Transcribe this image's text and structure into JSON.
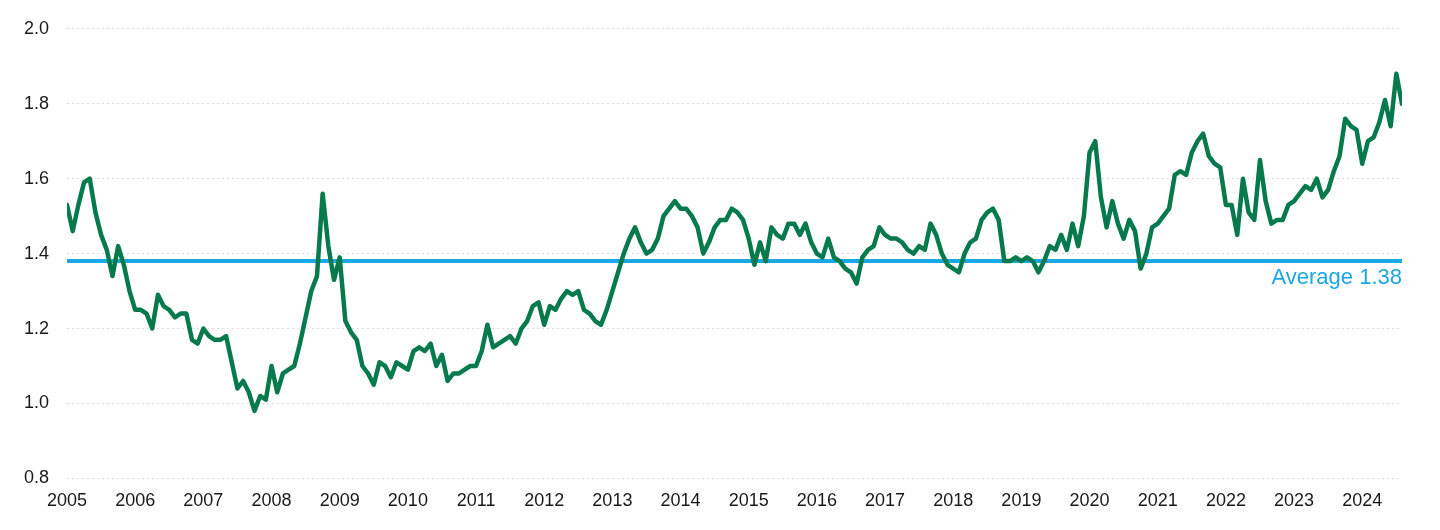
{
  "chart_data": {
    "type": "line",
    "color": "#077a4d",
    "categories": [
      "2005",
      null,
      null,
      null,
      null,
      null,
      null,
      null,
      null,
      null,
      null,
      null,
      "2006",
      null,
      null,
      null,
      null,
      null,
      null,
      null,
      null,
      null,
      null,
      null,
      "2007",
      null,
      null,
      null,
      null,
      null,
      null,
      null,
      null,
      null,
      null,
      null,
      "2008",
      null,
      null,
      null,
      null,
      null,
      null,
      null,
      null,
      null,
      null,
      null,
      "2009",
      null,
      null,
      null,
      null,
      null,
      null,
      null,
      null,
      null,
      null,
      null,
      "2010",
      null,
      null,
      null,
      null,
      null,
      null,
      null,
      null,
      null,
      null,
      null,
      "2011",
      null,
      null,
      null,
      null,
      null,
      null,
      null,
      null,
      null,
      null,
      null,
      "2012",
      null,
      null,
      null,
      null,
      null,
      null,
      null,
      null,
      null,
      null,
      null,
      "2013",
      null,
      null,
      null,
      null,
      null,
      null,
      null,
      null,
      null,
      null,
      null,
      "2014",
      null,
      null,
      null,
      null,
      null,
      null,
      null,
      null,
      null,
      null,
      null,
      "2015",
      null,
      null,
      null,
      null,
      null,
      null,
      null,
      null,
      null,
      null,
      null,
      "2016",
      null,
      null,
      null,
      null,
      null,
      null,
      null,
      null,
      null,
      null,
      null,
      "2017",
      null,
      null,
      null,
      null,
      null,
      null,
      null,
      null,
      null,
      null,
      null,
      "2018",
      null,
      null,
      null,
      null,
      null,
      null,
      null,
      null,
      null,
      null,
      null,
      "2019",
      null,
      null,
      null,
      null,
      null,
      null,
      null,
      null,
      null,
      null,
      null,
      "2020",
      null,
      null,
      null,
      null,
      null,
      null,
      null,
      null,
      null,
      null,
      null,
      "2021",
      null,
      null,
      null,
      null,
      null,
      null,
      null,
      null,
      null,
      null,
      null,
      "2022",
      null,
      null,
      null,
      null,
      null,
      null,
      null,
      null,
      null,
      null,
      null,
      "2023",
      null,
      null,
      null,
      null,
      null,
      null,
      null,
      null,
      null,
      null,
      null,
      "2024",
      null,
      null,
      null,
      null,
      null,
      null,
      null
    ],
    "values": [
      1.53,
      1.46,
      1.53,
      1.59,
      1.6,
      1.51,
      1.45,
      1.41,
      1.34,
      1.42,
      1.37,
      1.3,
      1.25,
      1.25,
      1.24,
      1.2,
      1.29,
      1.26,
      1.25,
      1.23,
      1.24,
      1.24,
      1.17,
      1.16,
      1.2,
      1.18,
      1.17,
      1.17,
      1.18,
      1.11,
      1.04,
      1.06,
      1.03,
      0.98,
      1.02,
      1.01,
      1.1,
      1.03,
      1.08,
      1.09,
      1.1,
      1.16,
      1.23,
      1.3,
      1.34,
      1.56,
      1.42,
      1.33,
      1.39,
      1.22,
      1.19,
      1.17,
      1.1,
      1.08,
      1.05,
      1.11,
      1.1,
      1.07,
      1.11,
      1.1,
      1.09,
      1.14,
      1.15,
      1.14,
      1.16,
      1.1,
      1.13,
      1.06,
      1.08,
      1.08,
      1.09,
      1.1,
      1.1,
      1.14,
      1.21,
      1.15,
      1.16,
      1.17,
      1.18,
      1.16,
      1.2,
      1.22,
      1.26,
      1.27,
      1.21,
      1.26,
      1.25,
      1.28,
      1.3,
      1.29,
      1.3,
      1.25,
      1.24,
      1.22,
      1.21,
      1.25,
      1.3,
      1.35,
      1.4,
      1.44,
      1.47,
      1.43,
      1.4,
      1.41,
      1.44,
      1.5,
      1.52,
      1.54,
      1.52,
      1.52,
      1.5,
      1.47,
      1.4,
      1.43,
      1.47,
      1.49,
      1.49,
      1.52,
      1.51,
      1.49,
      1.44,
      1.37,
      1.43,
      1.38,
      1.47,
      1.45,
      1.44,
      1.48,
      1.48,
      1.45,
      1.48,
      1.43,
      1.4,
      1.39,
      1.44,
      1.39,
      1.38,
      1.36,
      1.35,
      1.32,
      1.39,
      1.41,
      1.42,
      1.47,
      1.45,
      1.44,
      1.44,
      1.43,
      1.41,
      1.4,
      1.42,
      1.41,
      1.48,
      1.45,
      1.4,
      1.37,
      1.36,
      1.35,
      1.4,
      1.43,
      1.44,
      1.49,
      1.51,
      1.52,
      1.49,
      1.38,
      1.38,
      1.39,
      1.38,
      1.39,
      1.38,
      1.35,
      1.38,
      1.42,
      1.41,
      1.45,
      1.41,
      1.48,
      1.42,
      1.5,
      1.67,
      1.7,
      1.55,
      1.47,
      1.54,
      1.48,
      1.44,
      1.49,
      1.46,
      1.36,
      1.4,
      1.47,
      1.48,
      1.5,
      1.52,
      1.61,
      1.62,
      1.61,
      1.67,
      1.7,
      1.72,
      1.66,
      1.64,
      1.63,
      1.53,
      1.53,
      1.45,
      1.6,
      1.51,
      1.49,
      1.65,
      1.54,
      1.48,
      1.49,
      1.49,
      1.53,
      1.54,
      1.56,
      1.58,
      1.57,
      1.6,
      1.55,
      1.57,
      1.62,
      1.66,
      1.76,
      1.74,
      1.73,
      1.64,
      1.7,
      1.71,
      1.75,
      1.81,
      1.74,
      1.88,
      1.8
    ],
    "ylim": [
      0.8,
      2.0
    ],
    "yticks": [
      0.8,
      {
        "value": 1,
        "label": "1.0"
      },
      1.2,
      1.4,
      1.6,
      1.8,
      {
        "value": 2,
        "label": "2.0"
      }
    ],
    "grid": true,
    "annotations": [
      {
        "y": 1.38,
        "text": "Average 1.38",
        "color": "#1ba7e0"
      }
    ]
  }
}
